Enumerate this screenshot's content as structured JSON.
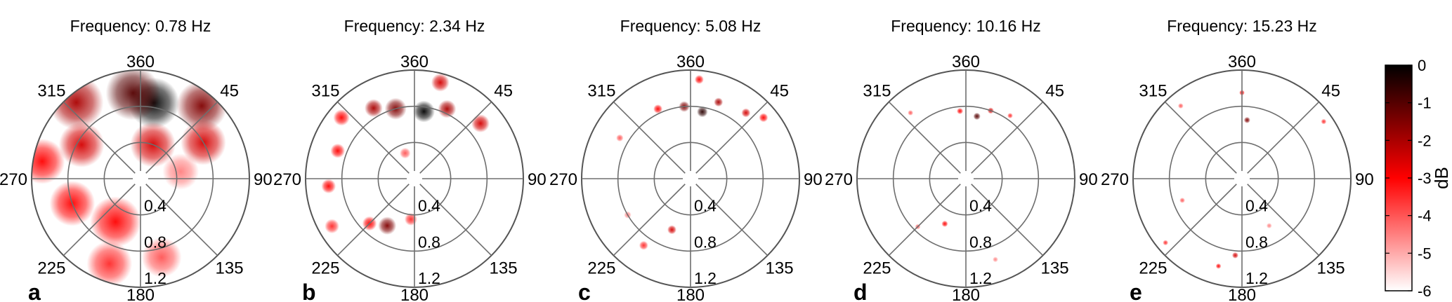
{
  "figure": {
    "accent_color": "#e60000",
    "colorbar": {
      "label": "dB",
      "range": [
        -6,
        0
      ],
      "tick_labels": [
        "0",
        "-1",
        "-2",
        "-3",
        "-4",
        "-5",
        "-6"
      ],
      "colors": [
        "#ffffff",
        "#ff0000",
        "#000000"
      ]
    }
  },
  "chart_data": [
    {
      "type": "heatmap",
      "projection": "polar",
      "panel_label": "a",
      "title": "Frequency:  0.78 Hz",
      "angle_tick_labels": [
        "360",
        "45",
        "90",
        "135",
        "180",
        "225",
        "270",
        "315"
      ],
      "radial_tick_labels": [
        "0.4",
        "0.8",
        "1.2"
      ],
      "radial_range": [
        0,
        1.2
      ],
      "value_range_db": [
        -6,
        0
      ],
      "blobs": [
        {
          "az": 10,
          "r": 0.85,
          "db": 0,
          "size": 0.28
        },
        {
          "az": 355,
          "r": 0.95,
          "db": -1,
          "size": 0.3
        },
        {
          "az": 320,
          "r": 1.1,
          "db": -2,
          "size": 0.3
        },
        {
          "az": 40,
          "r": 1.05,
          "db": -1.5,
          "size": 0.28
        },
        {
          "az": 60,
          "r": 0.8,
          "db": -2.5,
          "size": 0.25
        },
        {
          "az": 300,
          "r": 0.75,
          "db": -2.5,
          "size": 0.25
        },
        {
          "az": 280,
          "r": 1.1,
          "db": -3,
          "size": 0.25
        },
        {
          "az": 250,
          "r": 0.8,
          "db": -3,
          "size": 0.25
        },
        {
          "az": 210,
          "r": 0.55,
          "db": -3,
          "size": 0.28
        },
        {
          "az": 200,
          "r": 1.0,
          "db": -3.5,
          "size": 0.25
        },
        {
          "az": 165,
          "r": 0.9,
          "db": -4,
          "size": 0.22
        },
        {
          "az": 20,
          "r": 0.4,
          "db": -2.5,
          "size": 0.25
        },
        {
          "az": 80,
          "r": 0.45,
          "db": -4.5,
          "size": 0.2
        }
      ]
    },
    {
      "type": "heatmap",
      "projection": "polar",
      "panel_label": "b",
      "title": "Frequency:  2.34 Hz",
      "angle_tick_labels": [
        "360",
        "45",
        "90",
        "135",
        "180",
        "225",
        "270",
        "315"
      ],
      "radial_tick_labels": [
        "0.4",
        "0.8",
        "1.2"
      ],
      "radial_range": [
        0,
        1.2
      ],
      "value_range_db": [
        -6,
        0
      ],
      "blobs": [
        {
          "az": 8,
          "r": 0.75,
          "db": 0,
          "size": 0.12
        },
        {
          "az": 345,
          "r": 0.8,
          "db": -1.5,
          "size": 0.12
        },
        {
          "az": 330,
          "r": 0.9,
          "db": -2,
          "size": 0.1
        },
        {
          "az": 25,
          "r": 0.85,
          "db": -2,
          "size": 0.1
        },
        {
          "az": 15,
          "r": 1.1,
          "db": -2.5,
          "size": 0.1
        },
        {
          "az": 50,
          "r": 0.95,
          "db": -2.5,
          "size": 0.1
        },
        {
          "az": 310,
          "r": 1.05,
          "db": -3,
          "size": 0.09
        },
        {
          "az": 290,
          "r": 0.9,
          "db": -3,
          "size": 0.08
        },
        {
          "az": 265,
          "r": 0.95,
          "db": -3,
          "size": 0.08
        },
        {
          "az": 210,
          "r": 0.6,
          "db": -1.5,
          "size": 0.1
        },
        {
          "az": 225,
          "r": 0.7,
          "db": -3,
          "size": 0.08
        },
        {
          "az": 240,
          "r": 1.05,
          "db": -3.5,
          "size": 0.08
        },
        {
          "az": 185,
          "r": 0.45,
          "db": -3.5,
          "size": 0.07
        },
        {
          "az": 340,
          "r": 0.3,
          "db": -4,
          "size": 0.06
        }
      ]
    },
    {
      "type": "heatmap",
      "projection": "polar",
      "panel_label": "c",
      "title": "Frequency:  5.08 Hz",
      "angle_tick_labels": [
        "360",
        "45",
        "90",
        "135",
        "180",
        "225",
        "270",
        "315"
      ],
      "radial_tick_labels": [
        "0.4",
        "0.8",
        "1.2"
      ],
      "radial_range": [
        0,
        1.2
      ],
      "value_range_db": [
        -6,
        0
      ],
      "blobs": [
        {
          "az": 10,
          "r": 0.75,
          "db": -0.5,
          "size": 0.06
        },
        {
          "az": 355,
          "r": 0.8,
          "db": -1.5,
          "size": 0.06
        },
        {
          "az": 20,
          "r": 0.9,
          "db": -2,
          "size": 0.05
        },
        {
          "az": 40,
          "r": 0.95,
          "db": -2.5,
          "size": 0.05
        },
        {
          "az": 335,
          "r": 0.85,
          "db": -3,
          "size": 0.05
        },
        {
          "az": 5,
          "r": 1.1,
          "db": -3,
          "size": 0.05
        },
        {
          "az": 50,
          "r": 1.05,
          "db": -3,
          "size": 0.05
        },
        {
          "az": 200,
          "r": 0.6,
          "db": -2.5,
          "size": 0.05
        },
        {
          "az": 215,
          "r": 0.9,
          "db": -3.5,
          "size": 0.05
        },
        {
          "az": 300,
          "r": 0.9,
          "db": -4,
          "size": 0.04
        },
        {
          "az": 240,
          "r": 0.8,
          "db": -4.5,
          "size": 0.04
        }
      ]
    },
    {
      "type": "heatmap",
      "projection": "polar",
      "panel_label": "d",
      "title": "Frequency: 10.16 Hz",
      "angle_tick_labels": [
        "360",
        "45",
        "90",
        "135",
        "180",
        "225",
        "270",
        "315"
      ],
      "radial_tick_labels": [
        "0.4",
        "0.8",
        "1.2"
      ],
      "radial_range": [
        0,
        1.2
      ],
      "value_range_db": [
        -6,
        0
      ],
      "blobs": [
        {
          "az": 10,
          "r": 0.7,
          "db": -1,
          "size": 0.04
        },
        {
          "az": 20,
          "r": 0.8,
          "db": -2.5,
          "size": 0.035
        },
        {
          "az": 355,
          "r": 0.75,
          "db": -3,
          "size": 0.035
        },
        {
          "az": 35,
          "r": 0.85,
          "db": -3.5,
          "size": 0.03
        },
        {
          "az": 205,
          "r": 0.55,
          "db": -3,
          "size": 0.035
        },
        {
          "az": 225,
          "r": 0.75,
          "db": -4,
          "size": 0.03
        },
        {
          "az": 320,
          "r": 0.95,
          "db": -4,
          "size": 0.03
        },
        {
          "az": 160,
          "r": 0.95,
          "db": -4.5,
          "size": 0.03
        }
      ]
    },
    {
      "type": "heatmap",
      "projection": "polar",
      "panel_label": "e",
      "title": "Frequency: 15.23 Hz",
      "angle_tick_labels": [
        "360",
        "45",
        "90",
        "135",
        "180",
        "225",
        "270",
        "315"
      ],
      "radial_tick_labels": [
        "0.4",
        "0.8",
        "1.2"
      ],
      "radial_range": [
        0,
        1.2
      ],
      "value_range_db": [
        -6,
        0
      ],
      "blobs": [
        {
          "az": 5,
          "r": 0.65,
          "db": -1.5,
          "size": 0.035
        },
        {
          "az": 0,
          "r": 0.95,
          "db": -3,
          "size": 0.03
        },
        {
          "az": 185,
          "r": 0.85,
          "db": -2.5,
          "size": 0.035
        },
        {
          "az": 195,
          "r": 1.0,
          "db": -3,
          "size": 0.03
        },
        {
          "az": 230,
          "r": 1.1,
          "db": -3.5,
          "size": 0.03
        },
        {
          "az": 55,
          "r": 1.1,
          "db": -3.5,
          "size": 0.03
        },
        {
          "az": 320,
          "r": 1.05,
          "db": -4,
          "size": 0.03
        },
        {
          "az": 250,
          "r": 0.7,
          "db": -4,
          "size": 0.03
        },
        {
          "az": 150,
          "r": 0.6,
          "db": -4.5,
          "size": 0.03
        }
      ]
    }
  ]
}
